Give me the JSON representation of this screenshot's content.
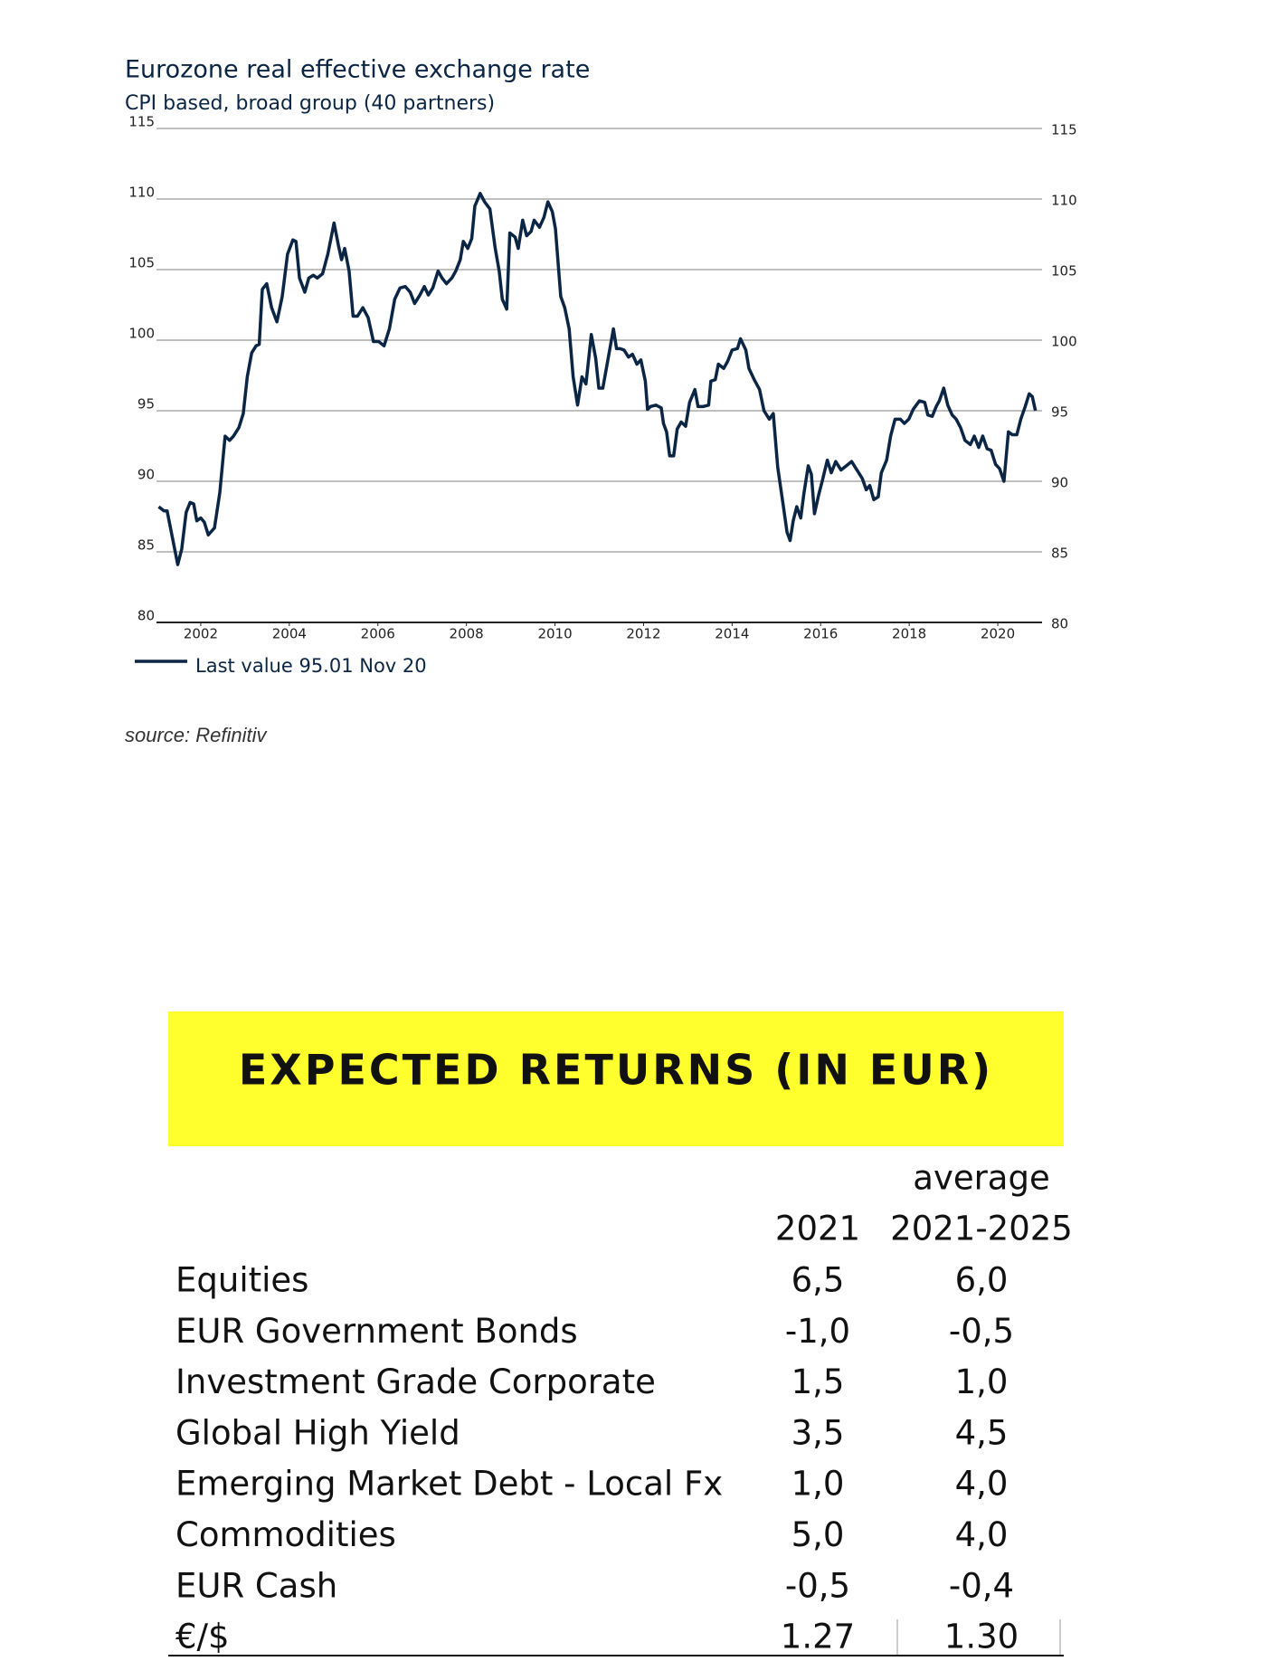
{
  "chart_data": {
    "type": "line",
    "title": "Eurozone real effective exchange rate",
    "subtitle": "CPI based, broad group (40 partners)",
    "source": "source: Refinitiv",
    "xlim": [
      2001,
      2021
    ],
    "xticks": [
      2002,
      2004,
      2006,
      2008,
      2010,
      2012,
      2014,
      2016,
      2018,
      2020
    ],
    "ylim": [
      80,
      115
    ],
    "yticks": [
      80,
      85,
      90,
      95,
      100,
      105,
      110,
      115
    ],
    "grid": true,
    "x": [
      2001.05,
      2001.17,
      2001.24,
      2001.36,
      2001.48,
      2001.57,
      2001.67,
      2001.76,
      2001.84,
      2001.91,
      2002.0,
      2002.08,
      2002.17,
      2002.31,
      2002.43,
      2002.55,
      2002.65,
      2002.74,
      2002.86,
      2002.96,
      2003.05,
      2003.15,
      2003.25,
      2003.32,
      2003.39,
      2003.49,
      2003.6,
      2003.72,
      2003.84,
      2003.96,
      2004.08,
      2004.15,
      2004.23,
      2004.35,
      2004.44,
      2004.54,
      2004.63,
      2004.75,
      2004.87,
      2005.01,
      2005.11,
      2005.18,
      2005.25,
      2005.35,
      2005.44,
      2005.54,
      2005.66,
      2005.78,
      2005.9,
      2006.02,
      2006.14,
      2006.26,
      2006.38,
      2006.5,
      2006.62,
      2006.73,
      2006.83,
      2006.95,
      2007.05,
      2007.14,
      2007.24,
      2007.36,
      2007.45,
      2007.55,
      2007.67,
      2007.76,
      2007.86,
      2007.93,
      2008.03,
      2008.12,
      2008.19,
      2008.31,
      2008.41,
      2008.53,
      2008.65,
      2008.74,
      2008.81,
      2008.91,
      2008.98,
      2009.1,
      2009.17,
      2009.27,
      2009.36,
      2009.46,
      2009.53,
      2009.65,
      2009.75,
      2009.84,
      2009.94,
      2010.01,
      2010.13,
      2010.22,
      2010.32,
      2010.41,
      2010.51,
      2010.61,
      2010.7,
      2010.82,
      2010.92,
      2010.99,
      2011.08,
      2011.2,
      2011.32,
      2011.39,
      2011.47,
      2011.56,
      2011.66,
      2011.75,
      2011.85,
      2011.94,
      2012.04,
      2012.09,
      2012.16,
      2012.28,
      2012.4,
      2012.45,
      2012.52,
      2012.59,
      2012.68,
      2012.76,
      2012.85,
      2012.95,
      2013.04,
      2013.16,
      2013.23,
      2013.35,
      2013.47,
      2013.52,
      2013.62,
      2013.69,
      2013.81,
      2013.9,
      2014.0,
      2014.12,
      2014.19,
      2014.31,
      2014.38,
      2014.5,
      2014.62,
      2014.72,
      2014.84,
      2014.93,
      2015.03,
      2015.15,
      2015.24,
      2015.31,
      2015.38,
      2015.46,
      2015.55,
      2015.62,
      2015.72,
      2015.79,
      2015.86,
      2015.96,
      2016.05,
      2016.15,
      2016.24,
      2016.34,
      2016.46,
      2016.58,
      2016.7,
      2016.82,
      2016.94,
      2017.03,
      2017.11,
      2017.2,
      2017.3,
      2017.37,
      2017.49,
      2017.58,
      2017.68,
      2017.8,
      2017.89,
      2017.99,
      2018.09,
      2018.23,
      2018.35,
      2018.42,
      2018.52,
      2018.61,
      2018.68,
      2018.78,
      2018.87,
      2018.97,
      2019.06,
      2019.16,
      2019.26,
      2019.38,
      2019.47,
      2019.57,
      2019.66,
      2019.76,
      2019.85,
      2019.95,
      2020.04,
      2020.14,
      2020.24,
      2020.33,
      2020.43,
      2020.52,
      2020.62,
      2020.71,
      2020.78,
      2020.85
    ],
    "series": [
      {
        "name": "Last value 95.01 Nov 20",
        "color": "#0b2545",
        "values": [
          88.2,
          87.9,
          87.9,
          86.0,
          84.1,
          85.2,
          87.8,
          88.5,
          88.4,
          87.2,
          87.4,
          87.1,
          86.2,
          86.7,
          89.2,
          93.2,
          92.9,
          93.2,
          93.8,
          94.8,
          97.4,
          99.1,
          99.6,
          99.7,
          103.6,
          104.0,
          102.3,
          101.3,
          103.1,
          106.1,
          107.1,
          107.0,
          104.4,
          103.4,
          104.4,
          104.6,
          104.4,
          104.7,
          106.1,
          108.3,
          106.7,
          105.7,
          106.5,
          104.9,
          101.7,
          101.7,
          102.3,
          101.6,
          99.9,
          99.9,
          99.6,
          100.8,
          102.9,
          103.7,
          103.8,
          103.4,
          102.6,
          103.2,
          103.8,
          103.2,
          103.7,
          104.9,
          104.4,
          104.0,
          104.4,
          104.9,
          105.7,
          107.0,
          106.5,
          107.2,
          109.5,
          110.4,
          109.8,
          109.3,
          106.5,
          104.9,
          102.9,
          102.2,
          107.6,
          107.3,
          106.5,
          108.5,
          107.4,
          107.7,
          108.5,
          108.0,
          108.7,
          109.8,
          109.1,
          107.9,
          103.1,
          102.3,
          100.8,
          97.4,
          95.4,
          97.4,
          96.9,
          100.4,
          98.7,
          96.6,
          96.6,
          98.7,
          100.8,
          99.4,
          99.4,
          99.3,
          98.8,
          99.0,
          98.3,
          98.6,
          97.1,
          95.1,
          95.3,
          95.4,
          95.2,
          94.1,
          93.5,
          91.8,
          91.8,
          93.7,
          94.2,
          93.9,
          95.6,
          96.5,
          95.3,
          95.3,
          95.4,
          97.1,
          97.2,
          98.3,
          98.0,
          98.5,
          99.3,
          99.4,
          100.1,
          99.3,
          98.0,
          97.2,
          96.5,
          95.0,
          94.4,
          94.8,
          91.0,
          88.4,
          86.4,
          85.8,
          87.2,
          88.2,
          87.4,
          89.1,
          91.1,
          90.5,
          87.7,
          89.1,
          90.2,
          91.5,
          90.6,
          91.4,
          90.8,
          91.1,
          91.4,
          90.8,
          90.2,
          89.4,
          89.7,
          88.7,
          88.9,
          90.6,
          91.5,
          93.2,
          94.4,
          94.4,
          94.1,
          94.4,
          95.1,
          95.7,
          95.6,
          94.7,
          94.6,
          95.3,
          95.7,
          96.6,
          95.4,
          94.7,
          94.4,
          93.8,
          92.9,
          92.6,
          93.2,
          92.4,
          93.2,
          92.3,
          92.2,
          91.2,
          90.9,
          90.0,
          93.5,
          93.3,
          93.3,
          94.4,
          95.3,
          96.2,
          96.0,
          95.01
        ]
      }
    ]
  },
  "table": {
    "title": "EXPECTED RETURNS (IN EUR)",
    "column_1": "2021",
    "column_2": [
      "average",
      "2021-2025"
    ],
    "rows": [
      [
        "Equities",
        "6,5",
        "6,0"
      ],
      [
        "EUR Government Bonds",
        "-1,0",
        "-0,5"
      ],
      [
        "Investment Grade Corporate",
        "1,5",
        "1,0"
      ],
      [
        "Global High Yield",
        "3,5",
        "4,5"
      ],
      [
        "Emerging Market Debt - Local Fx",
        "1,0",
        "4,0"
      ],
      [
        "Commodities",
        "5,0",
        "4,0"
      ],
      [
        "EUR Cash",
        "-0,5",
        "-0,4"
      ],
      [
        "€/$",
        "1.27",
        "1.30"
      ]
    ]
  }
}
